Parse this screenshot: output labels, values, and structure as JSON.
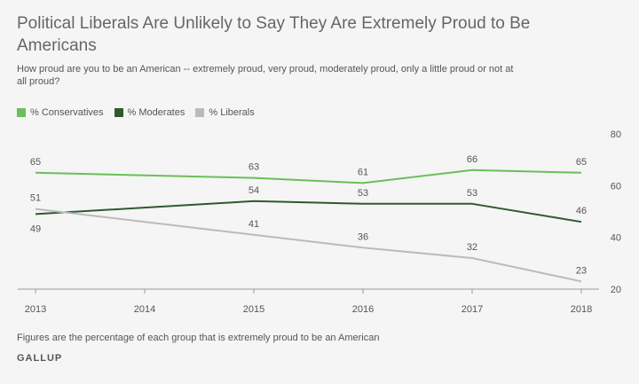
{
  "header": {
    "title": "Political Liberals Are Unlikely to Say They Are Extremely Proud to Be Americans",
    "subtitle": "How proud are you to be an American -- extremely proud, very proud, moderately proud, only a little proud or not at all proud?"
  },
  "footer": {
    "note": "Figures are the percentage of each group that is extremely proud to be an American",
    "brand": "GALLUP"
  },
  "chart_data": {
    "type": "line",
    "x": [
      2013,
      2014,
      2015,
      2016,
      2017,
      2018
    ],
    "x_tick_labels": [
      "2013",
      "2014",
      "2015",
      "2016",
      "2017",
      "2018"
    ],
    "ylim": [
      20,
      80
    ],
    "y_ticks": [
      20,
      40,
      60,
      80
    ],
    "grid": false,
    "legend_position": "top-left",
    "series": [
      {
        "name": "% Conservatives",
        "color": "#6abf5a",
        "x": [
          2013,
          2015,
          2016,
          2017,
          2018
        ],
        "values": [
          65,
          63,
          61,
          66,
          65
        ],
        "label_side": [
          "above",
          "above",
          "above",
          "above",
          "above"
        ]
      },
      {
        "name": "% Moderates",
        "color": "#2e5a2e",
        "x": [
          2013,
          2015,
          2016,
          2017,
          2018
        ],
        "values": [
          49,
          54,
          53,
          53,
          46
        ],
        "label_side": [
          "below",
          "above",
          "above",
          "above",
          "above"
        ]
      },
      {
        "name": "% Liberals",
        "color": "#bbbbbb",
        "x": [
          2013,
          2015,
          2016,
          2017,
          2018
        ],
        "values": [
          51,
          41,
          36,
          32,
          23
        ],
        "label_side": [
          "above",
          "above",
          "above",
          "above",
          "above"
        ]
      }
    ]
  }
}
